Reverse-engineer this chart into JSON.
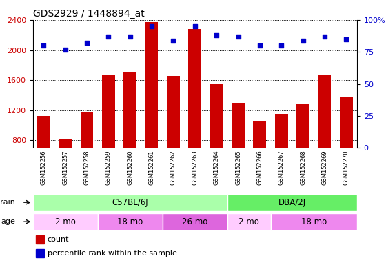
{
  "title": "GDS2929 / 1448894_at",
  "samples": [
    "GSM152256",
    "GSM152257",
    "GSM152258",
    "GSM152259",
    "GSM152260",
    "GSM152261",
    "GSM152262",
    "GSM152263",
    "GSM152264",
    "GSM152265",
    "GSM152266",
    "GSM152267",
    "GSM152268",
    "GSM152269",
    "GSM152270"
  ],
  "counts": [
    1120,
    820,
    1170,
    1680,
    1700,
    2370,
    1660,
    2280,
    1560,
    1300,
    1060,
    1150,
    1280,
    1680,
    1380
  ],
  "percentiles": [
    80,
    77,
    82,
    87,
    87,
    95,
    84,
    95,
    88,
    87,
    80,
    80,
    84,
    87,
    85
  ],
  "bar_color": "#cc0000",
  "dot_color": "#0000cc",
  "ylim_left": [
    700,
    2400
  ],
  "ylim_right": [
    0,
    100
  ],
  "yticks_left": [
    800,
    1200,
    1600,
    2000,
    2400
  ],
  "yticks_right": [
    0,
    25,
    50,
    75,
    100
  ],
  "strain_labels": [
    {
      "label": "C57BL/6J",
      "start": 0,
      "end": 9,
      "color": "#aaffaa"
    },
    {
      "label": "DBA/2J",
      "start": 9,
      "end": 15,
      "color": "#66ee66"
    }
  ],
  "age_labels": [
    {
      "label": "2 mo",
      "start": 0,
      "end": 3,
      "color": "#ffccff"
    },
    {
      "label": "18 mo",
      "start": 3,
      "end": 6,
      "color": "#ee88ee"
    },
    {
      "label": "26 mo",
      "start": 6,
      "end": 9,
      "color": "#dd66dd"
    },
    {
      "label": "2 mo",
      "start": 9,
      "end": 11,
      "color": "#ffccff"
    },
    {
      "label": "18 mo",
      "start": 11,
      "end": 15,
      "color": "#ee88ee"
    }
  ],
  "legend_count_color": "#cc0000",
  "legend_pct_color": "#0000cc",
  "tick_label_color_left": "#cc0000",
  "tick_label_color_right": "#0000cc",
  "plot_bg_color": "#ffffff",
  "xtick_bg_color": "#d0d0d0"
}
